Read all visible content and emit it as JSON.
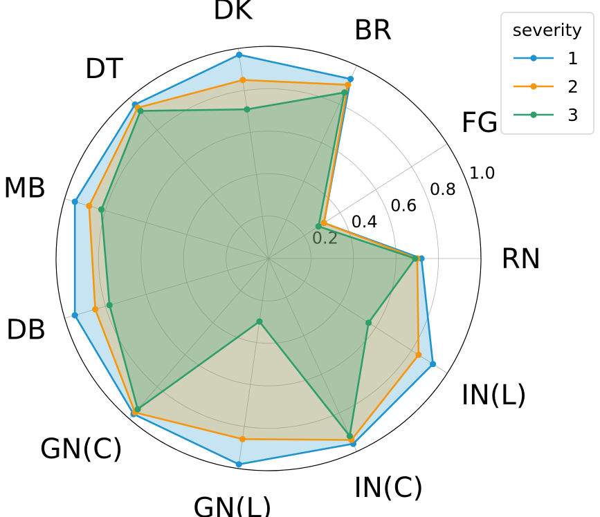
{
  "chart_data": {
    "type": "radar",
    "categories": [
      "RN",
      "FG",
      "BR",
      "DK",
      "DT",
      "MB",
      "DB",
      "GN(C)",
      "GN(L)",
      "IN(C)",
      "IN(L)"
    ],
    "radial_ticks": [
      "0.2",
      "0.4",
      "0.6",
      "0.8",
      "1.0"
    ],
    "rlim": [
      0,
      1.0
    ],
    "grid": true,
    "legend": {
      "title": "severity",
      "placement": "top-right"
    },
    "series": [
      {
        "name": "1",
        "color": "#1f93cf",
        "fill": "#1f93cf",
        "values": [
          0.72,
          0.31,
          0.93,
          0.97,
          0.96,
          0.95,
          0.95,
          0.97,
          0.98,
          0.96,
          0.92
        ]
      },
      {
        "name": "2",
        "color": "#f5960f",
        "fill": "#f5960f",
        "values": [
          0.7,
          0.31,
          0.9,
          0.85,
          0.94,
          0.88,
          0.85,
          0.96,
          0.86,
          0.94,
          0.84
        ]
      },
      {
        "name": "3",
        "color": "#2e9e6a",
        "fill": "#2e9e6a",
        "values": [
          0.69,
          0.28,
          0.86,
          0.71,
          0.92,
          0.82,
          0.78,
          0.94,
          0.3,
          0.92,
          0.56
        ]
      }
    ]
  }
}
